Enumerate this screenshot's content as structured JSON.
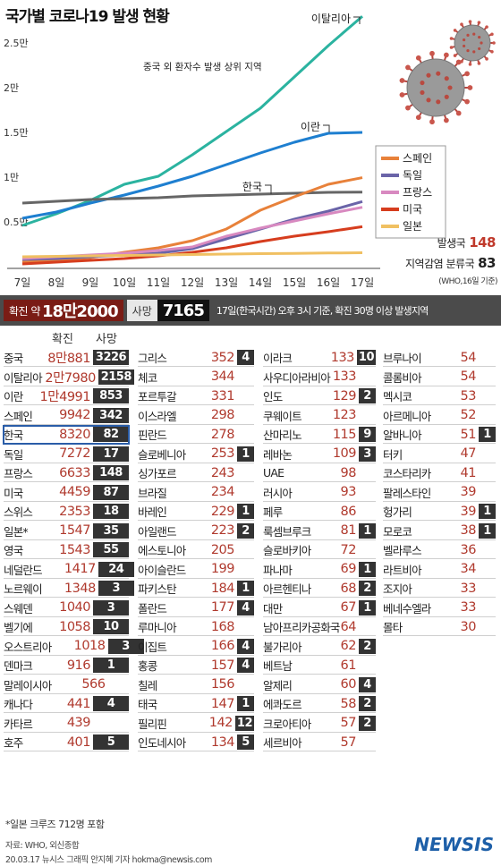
{
  "title": "국가별 코로나19 발생 현황",
  "chart_data": {
    "type": "line",
    "title": "국가별 코로나19 발생 현황",
    "subtitle": "중국 외 환자수 발생 상위 지역",
    "x": [
      "7일",
      "8일",
      "9일",
      "10일",
      "11일",
      "12일",
      "13일",
      "14일",
      "15일",
      "16일",
      "17일"
    ],
    "y_ticks": [
      "0.5만",
      "1만",
      "1.5만",
      "2만",
      "2.5만"
    ],
    "y_tick_values": [
      5000,
      10000,
      15000,
      20000,
      25000
    ],
    "ylim": [
      0,
      28000
    ],
    "grid": false,
    "legend_position": "right",
    "series": [
      {
        "name": "이탈리아",
        "color": "#2bb3a0",
        "values": [
          4600,
          5900,
          7400,
          9200,
          10100,
          12500,
          15100,
          17700,
          21200,
          24700,
          27980
        ]
      },
      {
        "name": "이란",
        "color": "#1e7fd0",
        "values": [
          5400,
          6100,
          7100,
          8000,
          9000,
          10100,
          11400,
          12700,
          13900,
          14900,
          15000
        ]
      },
      {
        "name": "한국",
        "color": "#666666",
        "values": [
          7100,
          7300,
          7500,
          7600,
          7700,
          7900,
          8000,
          8100,
          8200,
          8300,
          8320
        ]
      },
      {
        "name": "스페인",
        "color": "#e8813a",
        "values": [
          500,
          700,
          1000,
          1600,
          2100,
          2900,
          4200,
          6300,
          7800,
          9200,
          9942
        ]
      },
      {
        "name": "독일",
        "color": "#6a64a8",
        "values": [
          800,
          900,
          1100,
          1300,
          1500,
          2000,
          3100,
          4200,
          5300,
          6200,
          7272
        ]
      },
      {
        "name": "프랑스",
        "color": "#d889c0",
        "values": [
          900,
          1100,
          1300,
          1500,
          1800,
          2200,
          3400,
          4300,
          5100,
          5900,
          6633
        ]
      },
      {
        "name": "미국",
        "color": "#d63d1e",
        "values": [
          300,
          500,
          700,
          900,
          1200,
          1600,
          2100,
          2800,
          3400,
          3900,
          4459
        ]
      },
      {
        "name": "일본",
        "color": "#f0c062",
        "values": [
          1100,
          1150,
          1200,
          1250,
          1300,
          1350,
          1400,
          1450,
          1480,
          1520,
          1547
        ]
      }
    ]
  },
  "stats": {
    "label1": "발생국",
    "value1": "148",
    "label2": "지역감염 분류국",
    "value2": "83",
    "who_note": "(WHO,16일 기준)"
  },
  "summary": {
    "confirmed_label": "확진 약",
    "confirmed_value": "18만2000",
    "death_label": "사망",
    "death_value": "7165",
    "note": "17일(한국시간) 오후 3시 기준, 확진 30명 이상 발생지역"
  },
  "headers": {
    "confirmed": "확진",
    "death": "사망"
  },
  "columns": [
    [
      {
        "name": "중국",
        "confirmed": "8만881",
        "death": "3226"
      },
      {
        "name": "이탈리아",
        "confirmed": "2만7980",
        "death": "2158"
      },
      {
        "name": "이란",
        "confirmed": "1만4991",
        "death": "853"
      },
      {
        "name": "스페인",
        "confirmed": "9942",
        "death": "342"
      },
      {
        "name": "한국",
        "confirmed": "8320",
        "death": "82"
      },
      {
        "name": "독일",
        "confirmed": "7272",
        "death": "17"
      },
      {
        "name": "프랑스",
        "confirmed": "6633",
        "death": "148"
      },
      {
        "name": "미국",
        "confirmed": "4459",
        "death": "87"
      },
      {
        "name": "스위스",
        "confirmed": "2353",
        "death": "18"
      },
      {
        "name": "일본*",
        "confirmed": "1547",
        "death": "35"
      },
      {
        "name": "영국",
        "confirmed": "1543",
        "death": "55"
      },
      {
        "name": "네덜란드",
        "confirmed": "1417",
        "death": "24"
      },
      {
        "name": "노르웨이",
        "confirmed": "1348",
        "death": "3"
      },
      {
        "name": "스웨덴",
        "confirmed": "1040",
        "death": "3"
      },
      {
        "name": "벨기에",
        "confirmed": "1058",
        "death": "10"
      },
      {
        "name": "오스트리아",
        "confirmed": "1018",
        "death": "3"
      },
      {
        "name": "덴마크",
        "confirmed": "916",
        "death": "1"
      },
      {
        "name": "말레이시아",
        "confirmed": "566",
        "death": ""
      },
      {
        "name": "캐나다",
        "confirmed": "441",
        "death": "4"
      },
      {
        "name": "카타르",
        "confirmed": "439",
        "death": ""
      },
      {
        "name": "호주",
        "confirmed": "401",
        "death": "5"
      }
    ],
    [
      {
        "name": "그리스",
        "confirmed": "352",
        "death": "4"
      },
      {
        "name": "체코",
        "confirmed": "344",
        "death": ""
      },
      {
        "name": "포르투갈",
        "confirmed": "331",
        "death": ""
      },
      {
        "name": "이스라엘",
        "confirmed": "298",
        "death": ""
      },
      {
        "name": "핀란드",
        "confirmed": "278",
        "death": ""
      },
      {
        "name": "슬로베니아",
        "confirmed": "253",
        "death": "1"
      },
      {
        "name": "싱가포르",
        "confirmed": "243",
        "death": ""
      },
      {
        "name": "브라질",
        "confirmed": "234",
        "death": ""
      },
      {
        "name": "바레인",
        "confirmed": "229",
        "death": "1"
      },
      {
        "name": "아일랜드",
        "confirmed": "223",
        "death": "2"
      },
      {
        "name": "에스토니아",
        "confirmed": "205",
        "death": ""
      },
      {
        "name": "아이슬란드",
        "confirmed": "199",
        "death": ""
      },
      {
        "name": "파키스탄",
        "confirmed": "184",
        "death": "1"
      },
      {
        "name": "폴란드",
        "confirmed": "177",
        "death": "4"
      },
      {
        "name": "루마니아",
        "confirmed": "168",
        "death": ""
      },
      {
        "name": "이집트",
        "confirmed": "166",
        "death": "4"
      },
      {
        "name": "홍콩",
        "confirmed": "157",
        "death": "4"
      },
      {
        "name": "칠레",
        "confirmed": "156",
        "death": ""
      },
      {
        "name": "태국",
        "confirmed": "147",
        "death": "1"
      },
      {
        "name": "필리핀",
        "confirmed": "142",
        "death": "12"
      },
      {
        "name": "인도네시아",
        "confirmed": "134",
        "death": "5"
      }
    ],
    [
      {
        "name": "이라크",
        "confirmed": "133",
        "death": "10"
      },
      {
        "name": "사우디아라비아",
        "confirmed": "133",
        "death": ""
      },
      {
        "name": "인도",
        "confirmed": "129",
        "death": "2"
      },
      {
        "name": "쿠웨이트",
        "confirmed": "123",
        "death": ""
      },
      {
        "name": "산마리노",
        "confirmed": "115",
        "death": "9"
      },
      {
        "name": "레바논",
        "confirmed": "109",
        "death": "3"
      },
      {
        "name": "UAE",
        "confirmed": "98",
        "death": ""
      },
      {
        "name": "러시아",
        "confirmed": "93",
        "death": ""
      },
      {
        "name": "페루",
        "confirmed": "86",
        "death": ""
      },
      {
        "name": "룩셈브루크",
        "confirmed": "81",
        "death": "1"
      },
      {
        "name": "슬로바키아",
        "confirmed": "72",
        "death": ""
      },
      {
        "name": "파나마",
        "confirmed": "69",
        "death": "1"
      },
      {
        "name": "아르헨티나",
        "confirmed": "68",
        "death": "2"
      },
      {
        "name": "대만",
        "confirmed": "67",
        "death": "1"
      },
      {
        "name": "남아프리카공화국",
        "confirmed": "64",
        "death": ""
      },
      {
        "name": "불가리아",
        "confirmed": "62",
        "death": "2"
      },
      {
        "name": "베트남",
        "confirmed": "61",
        "death": ""
      },
      {
        "name": "알제리",
        "confirmed": "60",
        "death": "4"
      },
      {
        "name": "에콰도르",
        "confirmed": "58",
        "death": "2"
      },
      {
        "name": "크로아티아",
        "confirmed": "57",
        "death": "2"
      },
      {
        "name": "세르비아",
        "confirmed": "57",
        "death": ""
      }
    ],
    [
      {
        "name": "브루나이",
        "confirmed": "54",
        "death": ""
      },
      {
        "name": "콜롬비아",
        "confirmed": "54",
        "death": ""
      },
      {
        "name": "멕시코",
        "confirmed": "53",
        "death": ""
      },
      {
        "name": "아르메니아",
        "confirmed": "52",
        "death": ""
      },
      {
        "name": "알바니아",
        "confirmed": "51",
        "death": "1"
      },
      {
        "name": "터키",
        "confirmed": "47",
        "death": ""
      },
      {
        "name": "코스타리카",
        "confirmed": "41",
        "death": ""
      },
      {
        "name": "팔레스타인",
        "confirmed": "39",
        "death": ""
      },
      {
        "name": "헝가리",
        "confirmed": "39",
        "death": "1"
      },
      {
        "name": "모로코",
        "confirmed": "38",
        "death": "1"
      },
      {
        "name": "벨라루스",
        "confirmed": "36",
        "death": ""
      },
      {
        "name": "라트비아",
        "confirmed": "34",
        "death": ""
      },
      {
        "name": "조지아",
        "confirmed": "33",
        "death": ""
      },
      {
        "name": "베네수엘라",
        "confirmed": "33",
        "death": ""
      },
      {
        "name": "몰타",
        "confirmed": "30",
        "death": ""
      }
    ]
  ],
  "footnote": "*일본 크루즈 712명 포함",
  "source": "자료: WHO, 외신종합",
  "credit": "20.03.17 뉴시스 그래픽 안지혜 기자 hokma@newsis.com",
  "logo": "NEWSIS"
}
